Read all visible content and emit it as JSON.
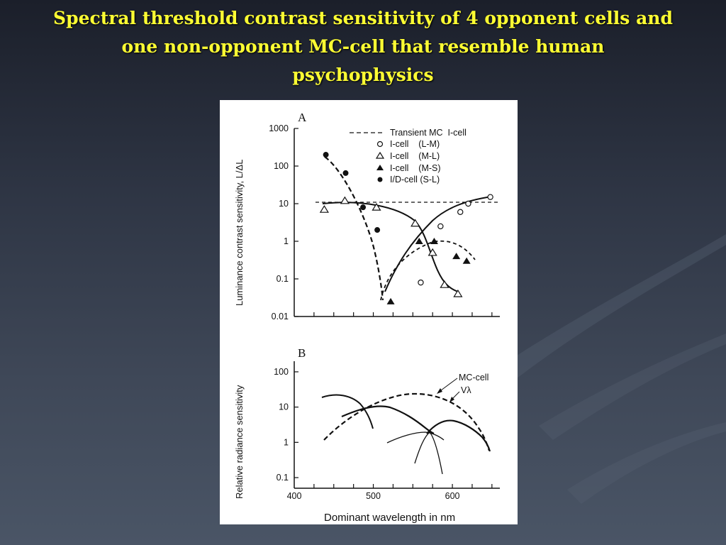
{
  "slide": {
    "title_lines": [
      "Spectral threshold contrast sensitivity of 4 opponent cells and",
      "one non-opponent MC-cell that resemble human",
      "psychophysics"
    ],
    "colors": {
      "title": "#ffff33",
      "background_top": "#1b1f2a",
      "background_bottom": "#4a5566"
    }
  },
  "chart_data": [
    {
      "type": "scatter",
      "panel_label": "A",
      "ylabel": "Luminance contrast sensitivity, L/ΔL",
      "yscale": "log",
      "ylim": [
        0.01,
        1000
      ],
      "xlim": [
        400,
        660
      ],
      "yticks": [
        "1000",
        "100",
        "10",
        "1",
        "0.1",
        "0.01"
      ],
      "legend_placement": "top-right",
      "series": [
        {
          "name": "Transient MC  I-cell",
          "marker": "dash-line",
          "x": [
            440,
            650
          ],
          "y": [
            10,
            10
          ]
        },
        {
          "name": "I-cell    (L-M)",
          "marker": "open-circle",
          "x": [
            560,
            585,
            610,
            620,
            648
          ],
          "y": [
            0.08,
            2.5,
            6,
            10,
            15
          ]
        },
        {
          "name": "I-cell    (M-L)",
          "marker": "open-triangle",
          "x": [
            438,
            464,
            504,
            553,
            575,
            590,
            607
          ],
          "y": [
            7,
            12,
            8,
            3,
            0.5,
            0.07,
            0.04
          ]
        },
        {
          "name": "I-cell    (M-S)",
          "marker": "filled-triangle",
          "x": [
            522,
            558,
            577,
            605,
            618
          ],
          "y": [
            0.025,
            1,
            1,
            0.4,
            0.3
          ]
        },
        {
          "name": "I/D-cell (S-L)",
          "marker": "filled-circle",
          "x": [
            440,
            465,
            487,
            505
          ],
          "y": [
            200,
            65,
            8,
            2
          ]
        }
      ]
    },
    {
      "type": "line",
      "panel_label": "B",
      "ylabel": "Relative radiance sensitivity",
      "xlabel": "Dominant wavelength in nm",
      "yscale": "log",
      "ylim": [
        0.05,
        200
      ],
      "xlim": [
        400,
        660
      ],
      "xticks": [
        "400",
        "500",
        "600"
      ],
      "yticks": [
        "100",
        "10",
        "1",
        "0.1"
      ],
      "annotations": [
        "MC-cell",
        "Vλ"
      ],
      "series": [
        {
          "name": "MC-cell",
          "style": "dashed",
          "x": [
            440,
            480,
            520,
            560,
            590,
            620,
            650
          ],
          "y": [
            1,
            5,
            15,
            22,
            17,
            7,
            0.5
          ]
        },
        {
          "style": "solid",
          "x": [
            440,
            460,
            480,
            500,
            505
          ],
          "y": [
            18,
            20,
            12,
            4,
            1.5
          ]
        },
        {
          "style": "solid-thick",
          "x": [
            470,
            490,
            520,
            545,
            570,
            590
          ],
          "y": [
            4,
            8,
            10,
            6,
            2.5,
            1.2
          ]
        },
        {
          "style": "solid",
          "x": [
            530,
            560,
            580,
            595
          ],
          "y": [
            1,
            1.8,
            1.5,
            0.9
          ]
        },
        {
          "style": "solid",
          "x": [
            555,
            565,
            575,
            585,
            592
          ],
          "y": [
            0.2,
            0.7,
            1.5,
            0.7,
            0.12
          ]
        },
        {
          "style": "solid-thick",
          "x": [
            570,
            590,
            610,
            630,
            650
          ],
          "y": [
            1.5,
            3.5,
            4,
            2.5,
            0.45
          ]
        }
      ]
    }
  ]
}
